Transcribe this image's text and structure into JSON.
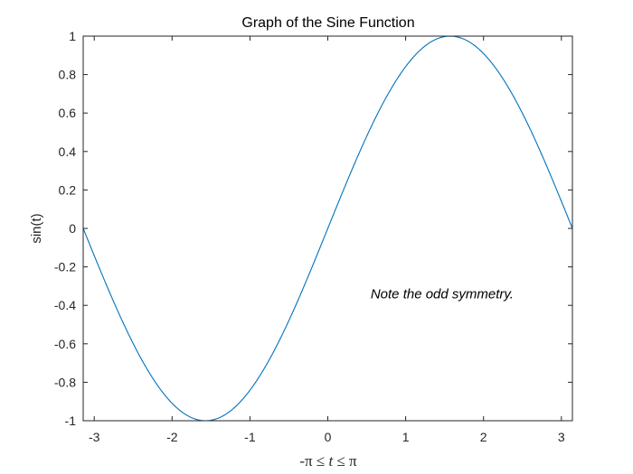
{
  "chart_data": {
    "type": "line",
    "title": "Graph of the Sine Function",
    "xlabel_parts": [
      "-π ≤ ",
      "t",
      " ≤ π"
    ],
    "ylabel": "sin(t)",
    "annotation": {
      "text": "Note the odd symmetry.",
      "x": 0.55,
      "y": -0.34
    },
    "xlim": [
      -3.14159,
      3.14159
    ],
    "ylim": [
      -1,
      1
    ],
    "xticks": [
      -3,
      -2,
      -1,
      0,
      1,
      2,
      3
    ],
    "xtick_labels": [
      "-3",
      "-2",
      "-1",
      "0",
      "1",
      "2",
      "3"
    ],
    "yticks": [
      -1,
      -0.8,
      -0.6,
      -0.4,
      -0.2,
      0,
      0.2,
      0.4,
      0.6,
      0.8,
      1
    ],
    "ytick_labels": [
      "-1",
      "-0.8",
      "-0.6",
      "-0.4",
      "-0.2",
      "0",
      "0.2",
      "0.4",
      "0.6",
      "0.8",
      "1"
    ],
    "grid": false,
    "box": true,
    "series": [
      {
        "function": "sin(t)",
        "color": "#0072BD",
        "x": [
          -3.1416,
          -3.0,
          -2.8,
          -2.6,
          -2.4,
          -2.2,
          -2.0,
          -1.8,
          -1.5708,
          -1.4,
          -1.2,
          -1.0,
          -0.8,
          -0.6,
          -0.4,
          -0.2,
          0.0,
          0.2,
          0.4,
          0.6,
          0.8,
          1.0,
          1.2,
          1.4,
          1.5708,
          1.8,
          2.0,
          2.2,
          2.4,
          2.6,
          2.8,
          3.0,
          3.1416
        ],
        "y": [
          0.0,
          -0.141,
          -0.335,
          -0.516,
          -0.675,
          -0.808,
          -0.909,
          -0.974,
          -1.0,
          -0.985,
          -0.932,
          -0.841,
          -0.717,
          -0.565,
          -0.389,
          -0.199,
          0.0,
          0.199,
          0.389,
          0.565,
          0.717,
          0.841,
          0.932,
          0.985,
          1.0,
          0.974,
          0.909,
          0.808,
          0.675,
          0.516,
          0.335,
          0.141,
          0.0
        ]
      }
    ],
    "colors": {
      "axis": "#262626",
      "line": "#0072BD",
      "background": "#ffffff"
    }
  }
}
